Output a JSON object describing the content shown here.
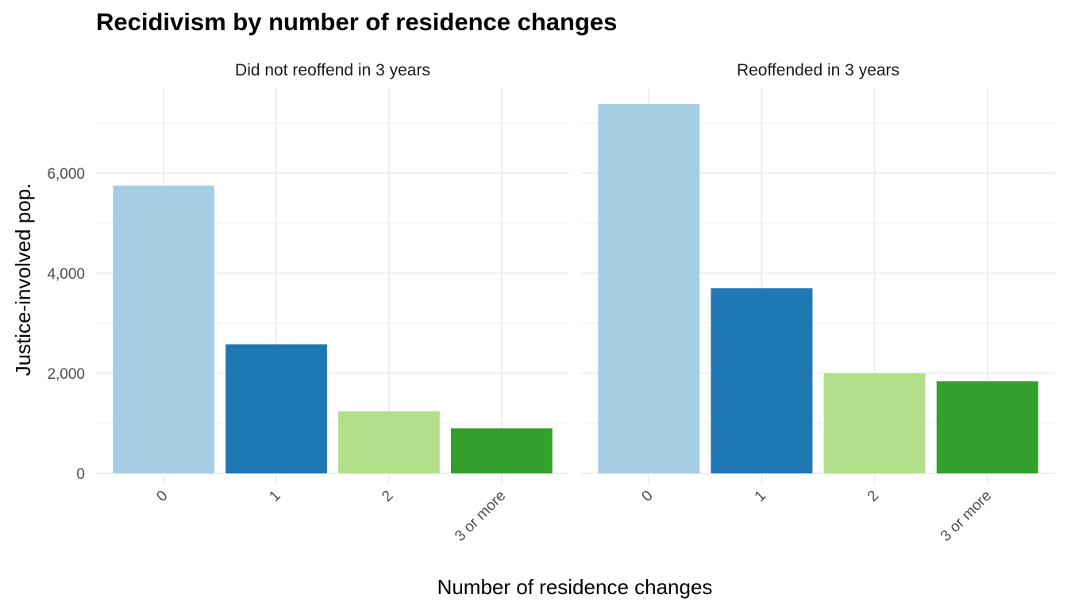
{
  "chart_data": {
    "type": "bar",
    "title": "Recidivism by number of residence changes",
    "xlabel": "Number of residence changes",
    "ylabel": "Justice-involved pop.",
    "categories": [
      "0",
      "1",
      "2",
      "3 or more"
    ],
    "ylim": [
      0,
      7400
    ],
    "yticks": [
      0,
      2000,
      4000,
      6000
    ],
    "ytick_labels": [
      "0",
      "2,000",
      "4,000",
      "6,000"
    ],
    "grid": true,
    "colors": [
      "#a6cee3",
      "#1f78b4",
      "#b2df8a",
      "#33a02c"
    ],
    "panels": [
      {
        "label": "Did not reoffend in 3 years",
        "values": [
          5750,
          2580,
          1240,
          900
        ]
      },
      {
        "label": "Reoffended in 3 years",
        "values": [
          7380,
          3700,
          2000,
          1840
        ]
      }
    ]
  }
}
